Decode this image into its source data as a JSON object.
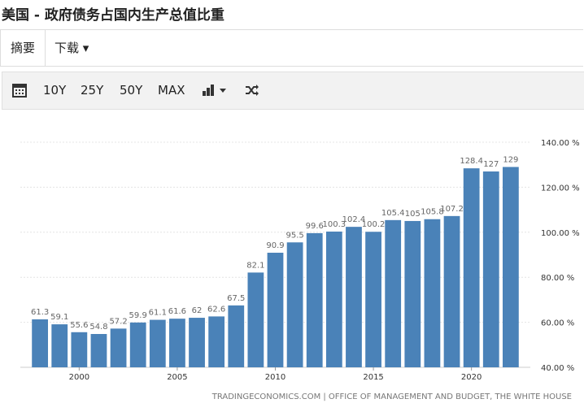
{
  "header": {
    "title": "美国 - 政府债务占国内生产总值比重"
  },
  "tabs": [
    "摘要",
    "下载"
  ],
  "toolbar": {
    "ranges": [
      "10Y",
      "25Y",
      "50Y",
      "MAX"
    ]
  },
  "chart_data": {
    "type": "bar",
    "color": "#4a82b8",
    "x": [
      1998,
      1999,
      2000,
      2001,
      2002,
      2003,
      2004,
      2005,
      2006,
      2007,
      2008,
      2009,
      2010,
      2011,
      2012,
      2013,
      2014,
      2015,
      2016,
      2017,
      2018,
      2019,
      2020,
      2021,
      2022
    ],
    "values": [
      61.3,
      59.1,
      55.6,
      54.8,
      57.2,
      59.9,
      61.1,
      61.6,
      62,
      62.6,
      67.5,
      82.1,
      90.9,
      95.5,
      99.6,
      100.3,
      102.4,
      100.2,
      105.4,
      105,
      105.8,
      107.2,
      128.4,
      127,
      129
    ],
    "xlim": [
      1997,
      2023
    ],
    "xticks": [
      2000,
      2005,
      2010,
      2015,
      2020
    ],
    "ylim": [
      40,
      140
    ],
    "yticks": [
      {
        "value": 40,
        "label": "40.00 %"
      },
      {
        "value": 60,
        "label": "60.00 %"
      },
      {
        "value": 80,
        "label": "80.00 %"
      },
      {
        "value": 100,
        "label": "100.00 %"
      },
      {
        "value": 120,
        "label": "120.00 %"
      },
      {
        "value": 140,
        "label": "140.00 %"
      }
    ],
    "grid": true,
    "source": "TRADINGECONOMICS.COM | OFFICE OF MANAGEMENT AND BUDGET, THE WHITE HOUSE"
  }
}
